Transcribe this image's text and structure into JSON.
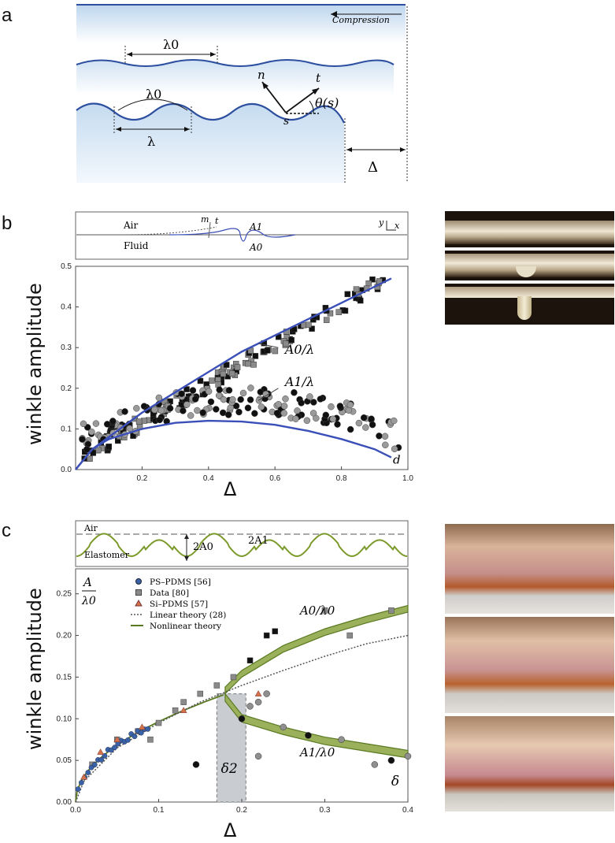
{
  "panels": {
    "a": {
      "letter": "a",
      "compression": "Compression",
      "lambda0_top": "λ0",
      "lambda0_mid": "λ0",
      "lambda": "λ",
      "n_vec": "n",
      "t_vec": "t",
      "theta": "θ(s)",
      "s": "s",
      "delta": "Δ"
    },
    "b": {
      "letter": "b",
      "inset_air": "Air",
      "inset_fluid": "Fluid",
      "inset_m": "m",
      "inset_t": "t",
      "inset_A1": "A1",
      "inset_A0": "A0",
      "inset_y": "y",
      "inset_x": "x",
      "ylabel": "winkle amplitude",
      "xlabel": "Δ",
      "label_A0": "A0/λ",
      "label_A1": "A1/λ",
      "label_d": "d"
    },
    "c": {
      "letter": "c",
      "inset_air": "Air",
      "inset_elastomer": "Elastomer",
      "inset_2A0": "2A0",
      "inset_2A1": "2A1",
      "ylabel": "winkle amplitude",
      "xlabel": "Δ",
      "corner_num": "A",
      "corner_den": "λ0",
      "label_A0": "A0/λ0",
      "label_A1": "A1/λ0",
      "label_delta2": "δ2",
      "label_delta": "δ",
      "legend": [
        "PS–PDMS [56]",
        "Data [80]",
        "Si–PDMS [57]",
        "Linear theory (28)",
        "Nonlinear theory"
      ]
    }
  },
  "colors": {
    "blue_curve": "#3b4fb8",
    "green_fill": "#9bb05a",
    "green_line": "#5a7a22",
    "ps_pdms": "#3a62a8",
    "si_pdms": "#d4724a",
    "grey_band": "#c9cdd2"
  },
  "chart_data": [
    {
      "type": "scatter",
      "panel": "b",
      "xlim": [
        0,
        1.0
      ],
      "ylim": [
        0,
        0.5
      ],
      "xticks": [
        "0.2",
        "0.4",
        "0.6",
        "0.8",
        "1.0"
      ],
      "yticks": [
        "0.0",
        "0.1",
        "0.2",
        "0.3",
        "0.4",
        "0.5"
      ],
      "xlabel": "Δ",
      "ylabel": "winkle amplitude",
      "series": [
        {
          "name": "A0/λ",
          "theory": [
            [
              0,
              0.0
            ],
            [
              0.05,
              0.05
            ],
            [
              0.1,
              0.08
            ],
            [
              0.2,
              0.14
            ],
            [
              0.3,
              0.19
            ],
            [
              0.4,
              0.24
            ],
            [
              0.5,
              0.29
            ],
            [
              0.6,
              0.33
            ],
            [
              0.7,
              0.37
            ],
            [
              0.8,
              0.41
            ],
            [
              0.9,
              0.45
            ],
            [
              0.95,
              0.47
            ]
          ]
        },
        {
          "name": "A1/λ",
          "theory": [
            [
              0,
              0.0
            ],
            [
              0.05,
              0.05
            ],
            [
              0.1,
              0.075
            ],
            [
              0.2,
              0.1
            ],
            [
              0.3,
              0.115
            ],
            [
              0.4,
              0.12
            ],
            [
              0.5,
              0.118
            ],
            [
              0.6,
              0.11
            ],
            [
              0.7,
              0.095
            ],
            [
              0.8,
              0.075
            ],
            [
              0.9,
              0.05
            ],
            [
              0.95,
              0.03
            ]
          ]
        }
      ]
    },
    {
      "type": "scatter",
      "panel": "c",
      "xlim": [
        0,
        0.4
      ],
      "ylim": [
        0,
        0.28
      ],
      "xticks": [
        "0.0",
        "0.1",
        "0.2",
        "0.3",
        "0.4"
      ],
      "yticks": [
        "0.00",
        "0.05",
        "0.10",
        "0.15",
        "0.20",
        "0.25"
      ],
      "xlabel": "Δ",
      "ylabel": "winkle amplitude",
      "series": [
        {
          "name": "PS–PDMS [56]",
          "points": [
            [
              0.002,
              0.01
            ],
            [
              0.005,
              0.02
            ],
            [
              0.008,
              0.03
            ],
            [
              0.012,
              0.04
            ],
            [
              0.018,
              0.05
            ],
            [
              0.025,
              0.06
            ],
            [
              0.035,
              0.07
            ],
            [
              0.045,
              0.078
            ],
            [
              0.055,
              0.085
            ],
            [
              0.065,
              0.09
            ]
          ]
        },
        {
          "name": "Data [80]",
          "points": [
            [
              0.1,
              0.095
            ],
            [
              0.12,
              0.11
            ],
            [
              0.13,
              0.12
            ],
            [
              0.15,
              0.13
            ],
            [
              0.17,
              0.14
            ],
            [
              0.19,
              0.15
            ],
            [
              0.21,
              0.17
            ],
            [
              0.23,
              0.2
            ],
            [
              0.24,
              0.205
            ],
            [
              0.3,
              0.23
            ],
            [
              0.33,
              0.2
            ],
            [
              0.38,
              0.23
            ],
            [
              0.02,
              0.045
            ],
            [
              0.05,
              0.075
            ],
            [
              0.075,
              0.085
            ],
            [
              0.09,
              0.075
            ]
          ]
        },
        {
          "name": "Si–PDMS [57]",
          "points": [
            [
              0.01,
              0.03
            ],
            [
              0.03,
              0.06
            ],
            [
              0.05,
              0.075
            ],
            [
              0.08,
              0.09
            ],
            [
              0.13,
              0.11
            ],
            [
              0.22,
              0.13
            ]
          ]
        },
        {
          "name": "Linear theory (28)",
          "line": [
            [
              0,
              0.0
            ],
            [
              0.01,
              0.025
            ],
            [
              0.05,
              0.065
            ],
            [
              0.1,
              0.095
            ],
            [
              0.15,
              0.12
            ],
            [
              0.2,
              0.14
            ],
            [
              0.25,
              0.158
            ],
            [
              0.3,
              0.175
            ],
            [
              0.35,
              0.19
            ],
            [
              0.4,
              0.2
            ]
          ]
        },
        {
          "name": "Nonlinear theory",
          "upper": [
            [
              0.18,
              0.13
            ],
            [
              0.2,
              0.15
            ],
            [
              0.25,
              0.18
            ],
            [
              0.3,
              0.2
            ],
            [
              0.35,
              0.215
            ],
            [
              0.4,
              0.228
            ]
          ],
          "lower": [
            [
              0.18,
              0.13
            ],
            [
              0.2,
              0.105
            ],
            [
              0.25,
              0.09
            ],
            [
              0.3,
              0.078
            ],
            [
              0.35,
              0.07
            ],
            [
              0.4,
              0.062
            ]
          ]
        }
      ]
    }
  ]
}
